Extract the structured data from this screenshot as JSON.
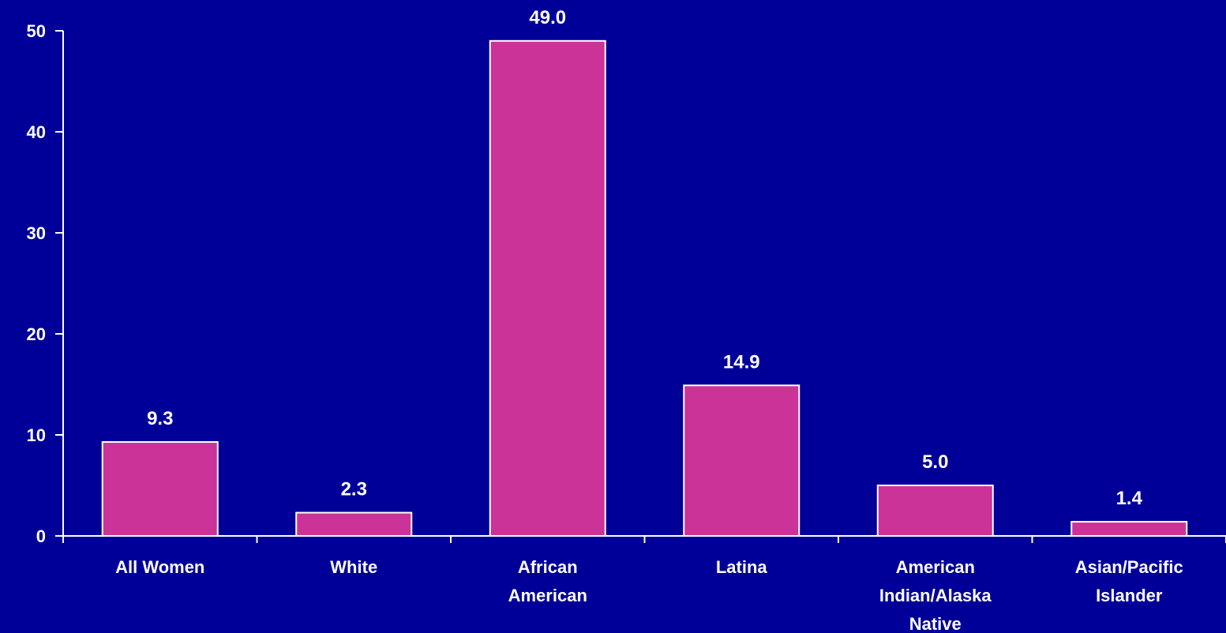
{
  "colors": {
    "background": "#000099",
    "bar_fill": "#CC3399",
    "bar_stroke": "#ffffff",
    "text": "#ffffff",
    "axis": "#ffffff"
  },
  "chart_data": {
    "type": "bar",
    "categories": [
      [
        "All Women"
      ],
      [
        "White"
      ],
      [
        "African",
        "American"
      ],
      [
        "Latina"
      ],
      [
        "American",
        "Indian/Alaska",
        "Native"
      ],
      [
        "Asian/Pacific",
        "Islander"
      ]
    ],
    "values": [
      9.3,
      2.3,
      49.0,
      14.9,
      5.0,
      1.4
    ],
    "data_labels": [
      "9.3",
      "2.3",
      "49.0",
      "14.9",
      "5.0",
      "1.4"
    ],
    "ylim": [
      0,
      50
    ],
    "yticks": [
      0,
      10,
      20,
      30,
      40,
      50
    ],
    "ytick_labels": [
      "0",
      "10",
      "20",
      "30",
      "40",
      "50"
    ],
    "title": "",
    "xlabel": "",
    "ylabel": "",
    "grid": false,
    "legend": "none"
  }
}
